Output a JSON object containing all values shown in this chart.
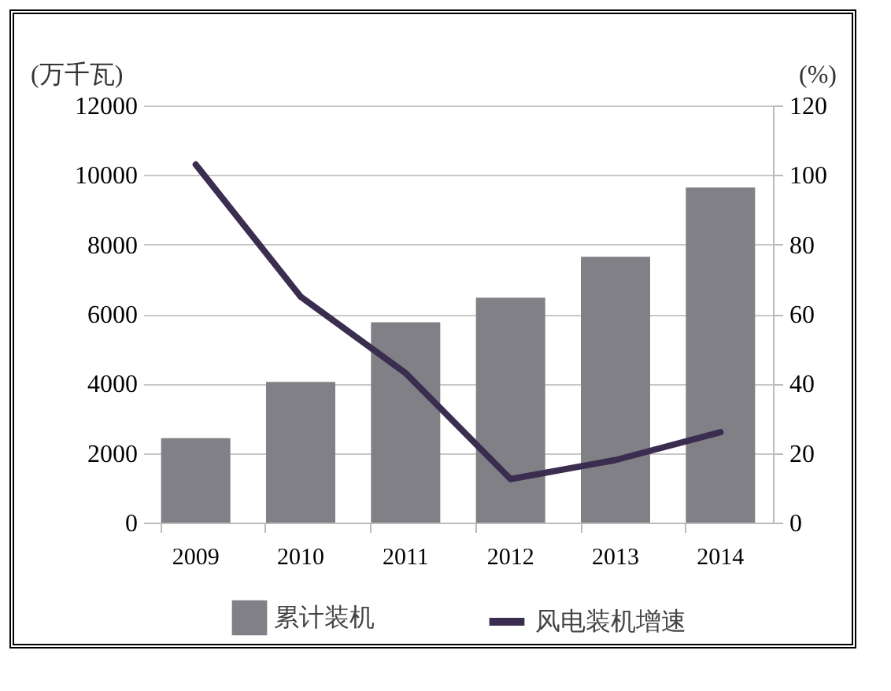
{
  "chart_data": {
    "type": "bar",
    "ylabel": "(万千瓦)",
    "y2label": "(%)",
    "categories": [
      "2009",
      "2010",
      "2011",
      "2012",
      "2013",
      "2014"
    ],
    "series": [
      {
        "name": "累计装机",
        "color": "#808086",
        "values": [
          2430,
          4050,
          5760,
          6470,
          7650,
          9640
        ]
      },
      {
        "name": "风电装机增速",
        "type": "line",
        "axis": "y2",
        "color": "#3b2d4f",
        "values": [
          103,
          65,
          43,
          12.5,
          18,
          26
        ]
      }
    ],
    "ylim": [
      0,
      12000
    ],
    "yticks": [
      0,
      2000,
      4000,
      6000,
      8000,
      10000,
      12000
    ],
    "y2lim": [
      0,
      120
    ],
    "y2ticks": [
      0,
      20,
      40,
      60,
      80,
      100,
      120
    ],
    "grid": "y",
    "legend": "bottom"
  }
}
